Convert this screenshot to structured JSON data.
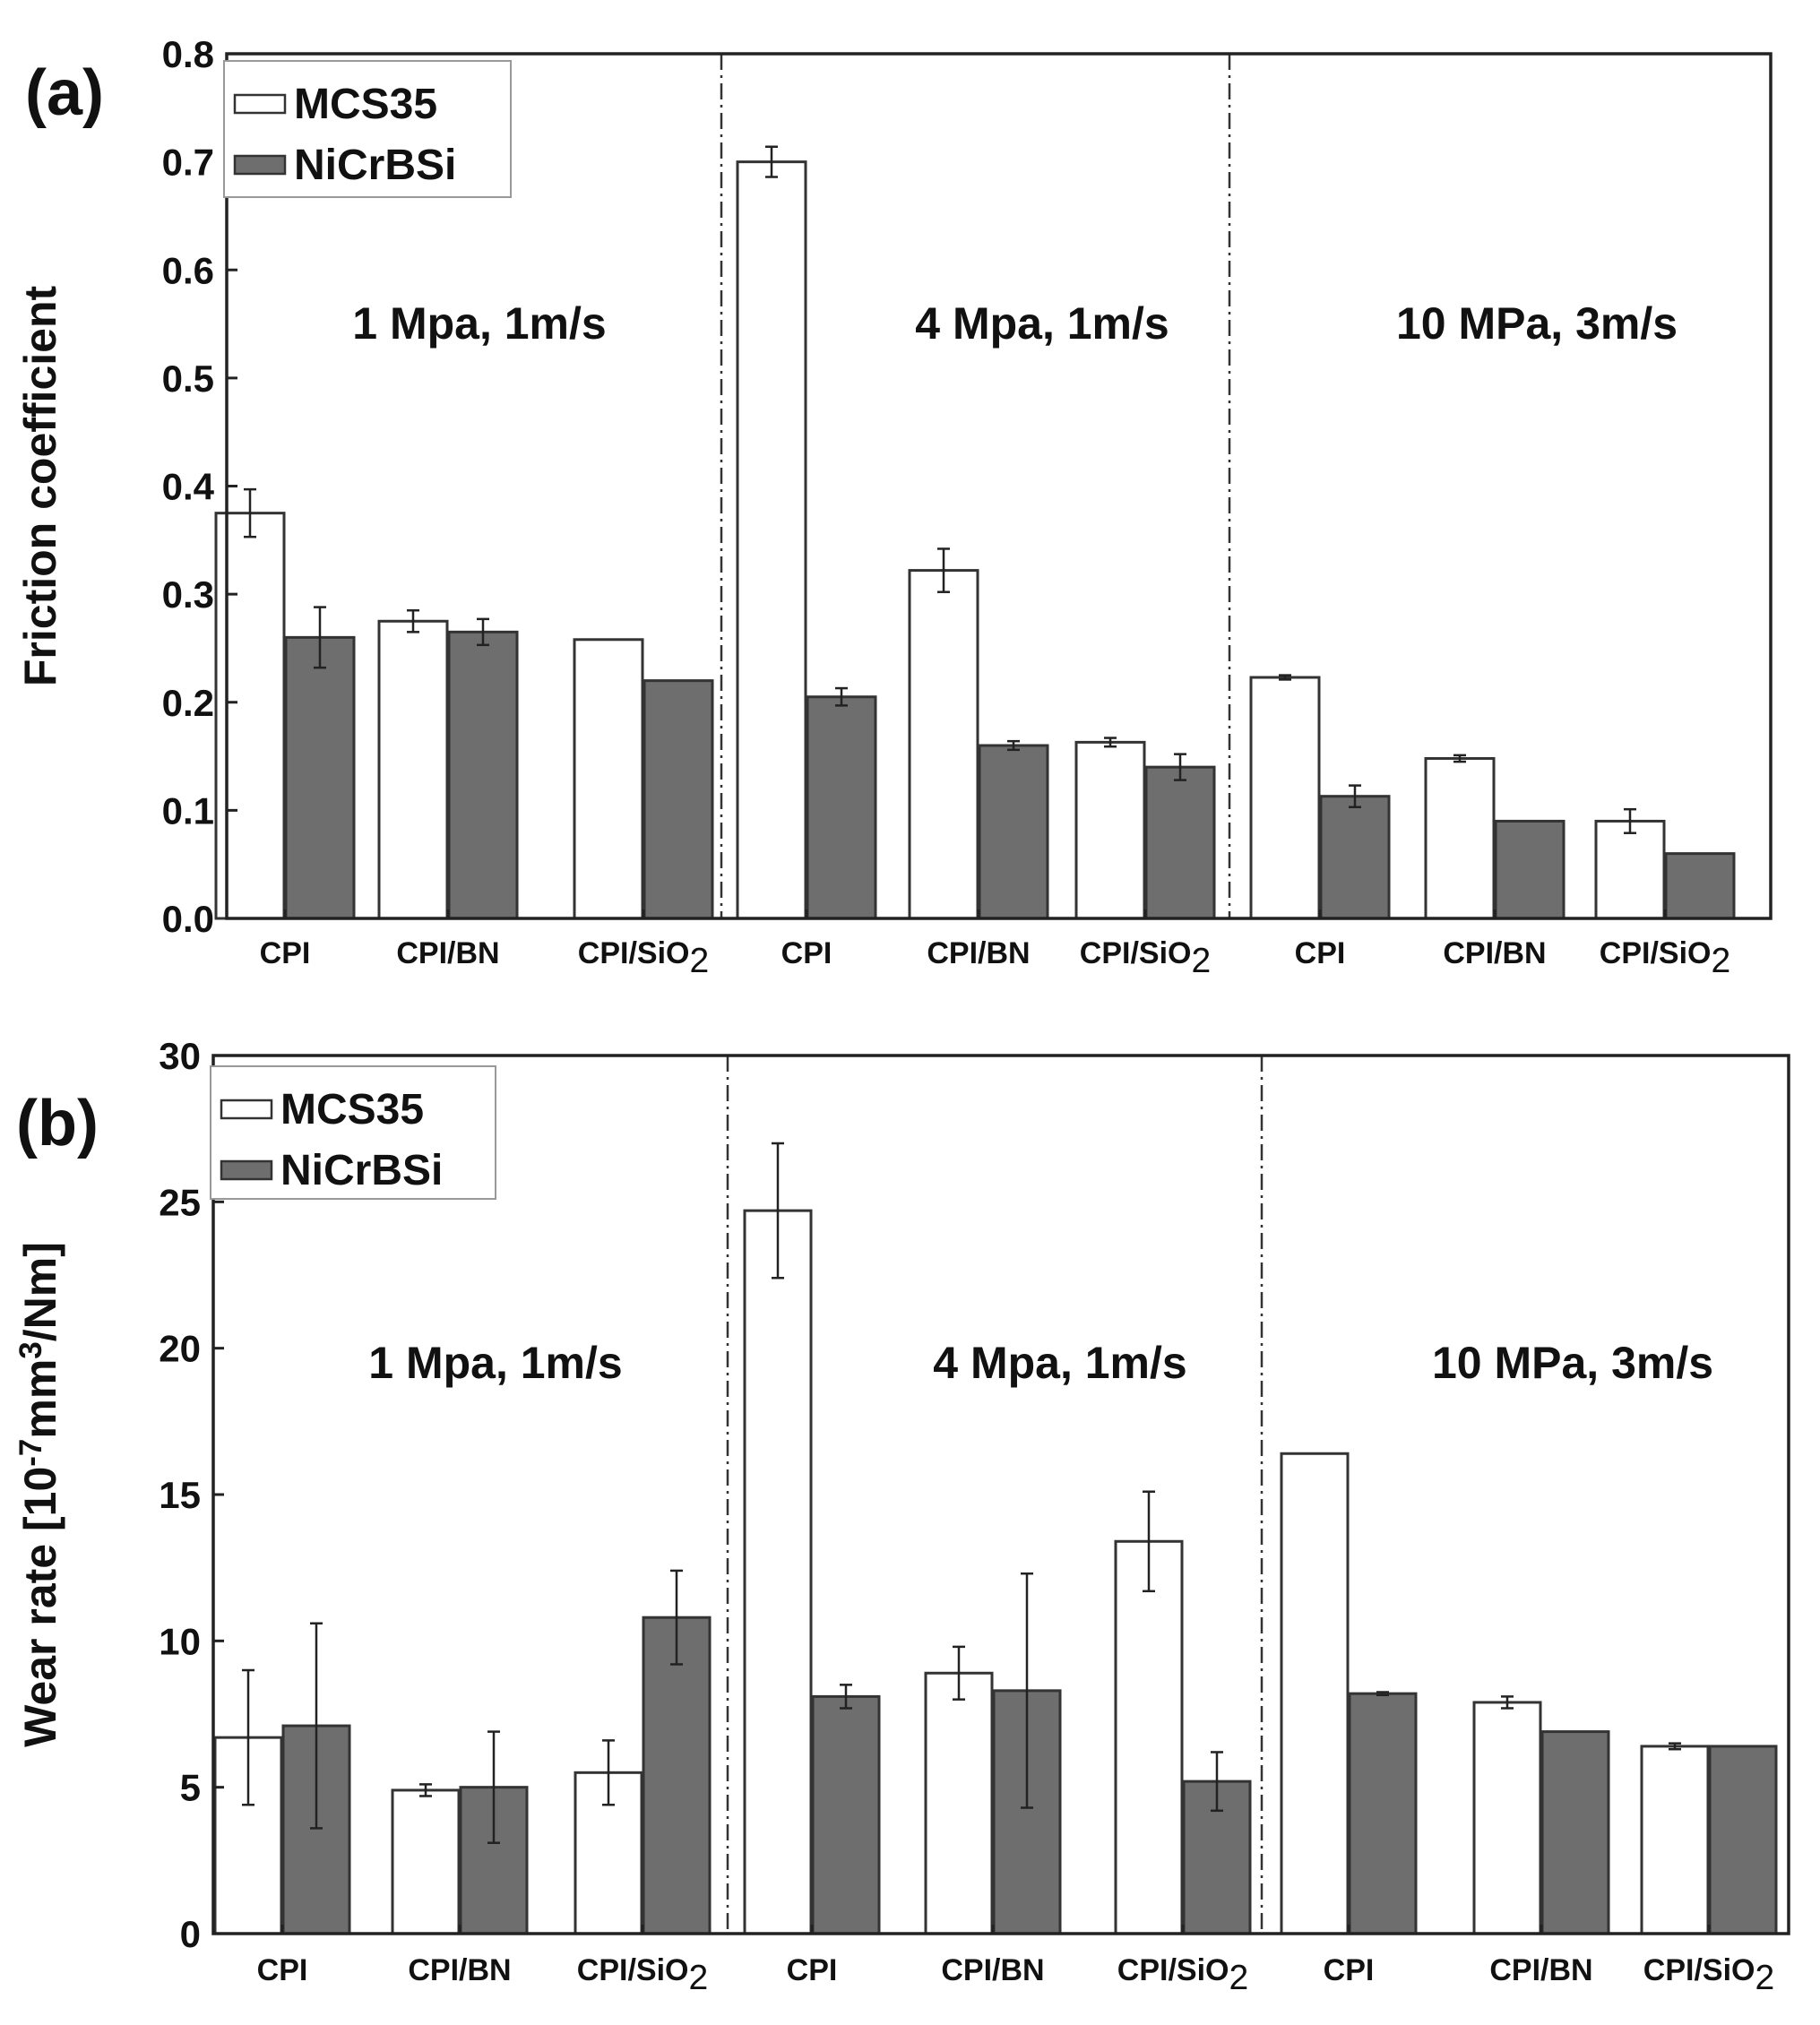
{
  "chart_data": [
    {
      "type": "bar",
      "panel_label": "(a)",
      "ylabel": "Friction coefficient",
      "ylim": [
        0.0,
        0.8
      ],
      "yticks": [
        "0.0",
        "0.1",
        "0.2",
        "0.3",
        "0.4",
        "0.5",
        "0.6",
        "0.7",
        "0.8"
      ],
      "legend": [
        {
          "name": "MCS35",
          "color": "#ffffff"
        },
        {
          "name": "NiCrBSi",
          "color": "#6e6e6e"
        }
      ],
      "groups": [
        {
          "condition": "1 Mpa, 1m/s",
          "categories": [
            "CPI",
            "CPI/BN",
            "CPI/SiO"
          ],
          "series": [
            {
              "name": "MCS35",
              "values": [
                0.375,
                0.275,
                0.258
              ],
              "errors": [
                0.022,
                0.01,
                0.0
              ]
            },
            {
              "name": "NiCrBSi",
              "values": [
                0.26,
                0.265,
                0.22
              ],
              "errors": [
                0.028,
                0.012,
                0.0
              ]
            }
          ]
        },
        {
          "condition": "4 Mpa, 1m/s",
          "categories": [
            "CPI",
            "CPI/BN",
            "CPI/SiO"
          ],
          "series": [
            {
              "name": "MCS35",
              "values": [
                0.7,
                0.322,
                0.163
              ],
              "errors": [
                0.014,
                0.02,
                0.004
              ]
            },
            {
              "name": "NiCrBSi",
              "values": [
                0.205,
                0.16,
                0.14
              ],
              "errors": [
                0.008,
                0.004,
                0.012
              ]
            }
          ]
        },
        {
          "condition": "10 MPa, 3m/s",
          "categories": [
            "CPI",
            "CPI/BN",
            "CPI/SiO"
          ],
          "series": [
            {
              "name": "MCS35",
              "values": [
                0.223,
                0.148,
                0.09
              ],
              "errors": [
                0.002,
                0.003,
                0.011
              ]
            },
            {
              "name": "NiCrBSi",
              "values": [
                0.113,
                0.09,
                0.06
              ],
              "errors": [
                0.01,
                0.0,
                0.0
              ]
            }
          ]
        }
      ]
    },
    {
      "type": "bar",
      "panel_label": "(b)",
      "ylabel": "Wear rate [10-7mm3/Nm]",
      "ylim": [
        0,
        30
      ],
      "yticks": [
        "0",
        "5",
        "10",
        "15",
        "20",
        "25",
        "30"
      ],
      "legend": [
        {
          "name": "MCS35",
          "color": "#ffffff"
        },
        {
          "name": "NiCrBSi",
          "color": "#6e6e6e"
        }
      ],
      "groups": [
        {
          "condition": "1 Mpa, 1m/s",
          "categories": [
            "CPI",
            "CPI/BN",
            "CPI/SiO"
          ],
          "series": [
            {
              "name": "MCS35",
              "values": [
                6.7,
                4.9,
                5.5
              ],
              "errors": [
                2.3,
                0.2,
                1.1
              ]
            },
            {
              "name": "NiCrBSi",
              "values": [
                7.1,
                5.0,
                10.8
              ],
              "errors": [
                3.5,
                1.9,
                1.6
              ]
            }
          ]
        },
        {
          "condition": "4 Mpa, 1m/s",
          "categories": [
            "CPI",
            "CPI/BN",
            "CPI/SiO"
          ],
          "series": [
            {
              "name": "MCS35",
              "values": [
                24.7,
                8.9,
                13.4
              ],
              "errors": [
                2.3,
                0.9,
                1.7
              ]
            },
            {
              "name": "NiCrBSi",
              "values": [
                8.1,
                8.3,
                5.2
              ],
              "errors": [
                0.4,
                4.0,
                1.0
              ]
            }
          ]
        },
        {
          "condition": "10 MPa, 3m/s",
          "categories": [
            "CPI",
            "CPI/BN",
            "CPI/SiO"
          ],
          "series": [
            {
              "name": "MCS35",
              "values": [
                16.4,
                7.9,
                6.4
              ],
              "errors": [
                0.0,
                0.2,
                0.1
              ]
            },
            {
              "name": "NiCrBSi",
              "values": [
                8.2,
                6.9,
                6.4
              ],
              "errors": [
                0.05,
                0.0,
                0.0
              ]
            }
          ]
        }
      ]
    }
  ],
  "subscript_2": "2",
  "superscript_3": "3",
  "colors": {
    "mcs35": "#ffffff",
    "nicrbsi": "#6e6e6e",
    "axis": "#222222"
  }
}
